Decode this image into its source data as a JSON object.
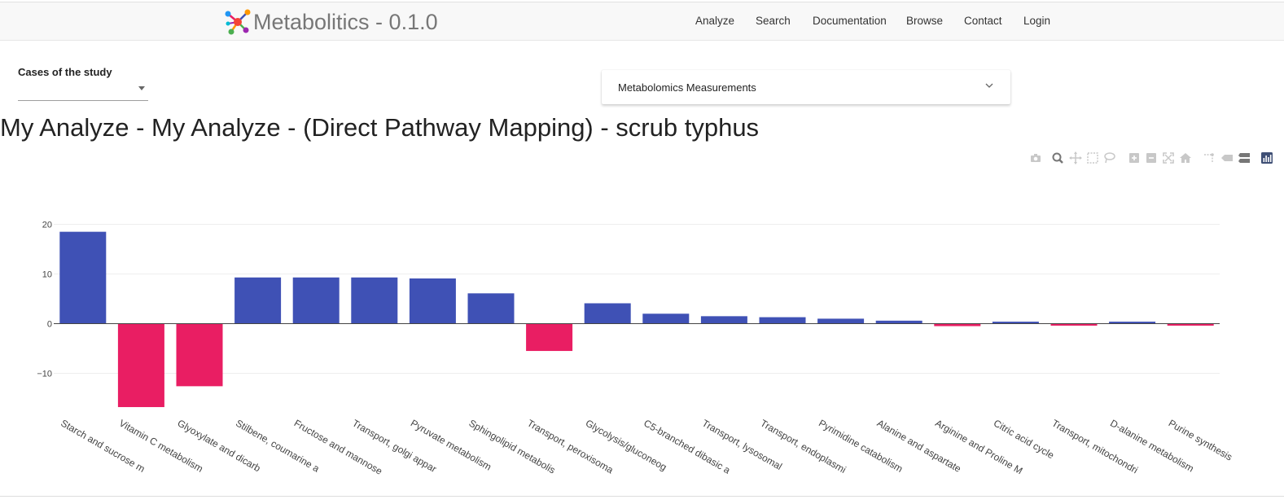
{
  "navbar": {
    "brand": "Metabolitics - 0.1.0",
    "items": [
      "Analyze",
      "Search",
      "Documentation",
      "Browse",
      "Contact",
      "Login"
    ]
  },
  "cases": {
    "label": "Cases of the study",
    "value": ""
  },
  "measurements": {
    "label": "Metabolomics Measurements"
  },
  "page_title": "My Analyze - My Analyze - (Direct Pathway Mapping) - scrub typhus",
  "modebar_icons": [
    "camera-icon",
    "zoom-icon",
    "pan-icon",
    "box-select-icon",
    "lasso-icon",
    "zoom-in-icon",
    "zoom-out-icon",
    "autoscale-icon",
    "reset-axes-icon",
    "spike-lines-icon",
    "hover-closest-icon",
    "hover-compare-icon",
    "plotly-logo-icon"
  ],
  "colors": {
    "positive": "#3f51b5",
    "negative": "#e91e63",
    "gridline": "#eeeeee",
    "zeroline": "#444444"
  },
  "chart_data": {
    "type": "bar",
    "title": "",
    "xlabel": "",
    "ylabel": "",
    "ylim": [
      -20,
      22
    ],
    "yticks": [
      20,
      10,
      0,
      -10
    ],
    "ytick_labels": [
      "20",
      "10",
      "0",
      "−10"
    ],
    "grid": true,
    "categories": [
      "Starch and sucrose m",
      "Vitamin C metabolism",
      "Glyoxylate and dicarb",
      "Stilbene, coumarine a",
      "Fructose and mannose",
      "Transport, golgi appar",
      "Pyruvate metabolism",
      "Sphingolipid metabolis",
      "Transport, peroxisoma",
      "Glycolysis/gluconeog",
      "C5-branched dibasic a",
      "Transport, lysosomal",
      "Transport, endoplasmi",
      "Pyrimidine catabolism",
      "Alanine and aspartate",
      "Arginine and Proline M",
      "Citric acid cycle",
      "Transport, mitochondri",
      "D-alanine metabolism",
      "Purine synthesis"
    ],
    "values": [
      18.5,
      -16.8,
      -12.6,
      9.3,
      9.3,
      9.3,
      9.1,
      6.1,
      -5.5,
      4.1,
      2.0,
      1.5,
      1.3,
      1.0,
      0.6,
      -0.5,
      0.4,
      -0.4,
      0.4,
      -0.4
    ]
  }
}
